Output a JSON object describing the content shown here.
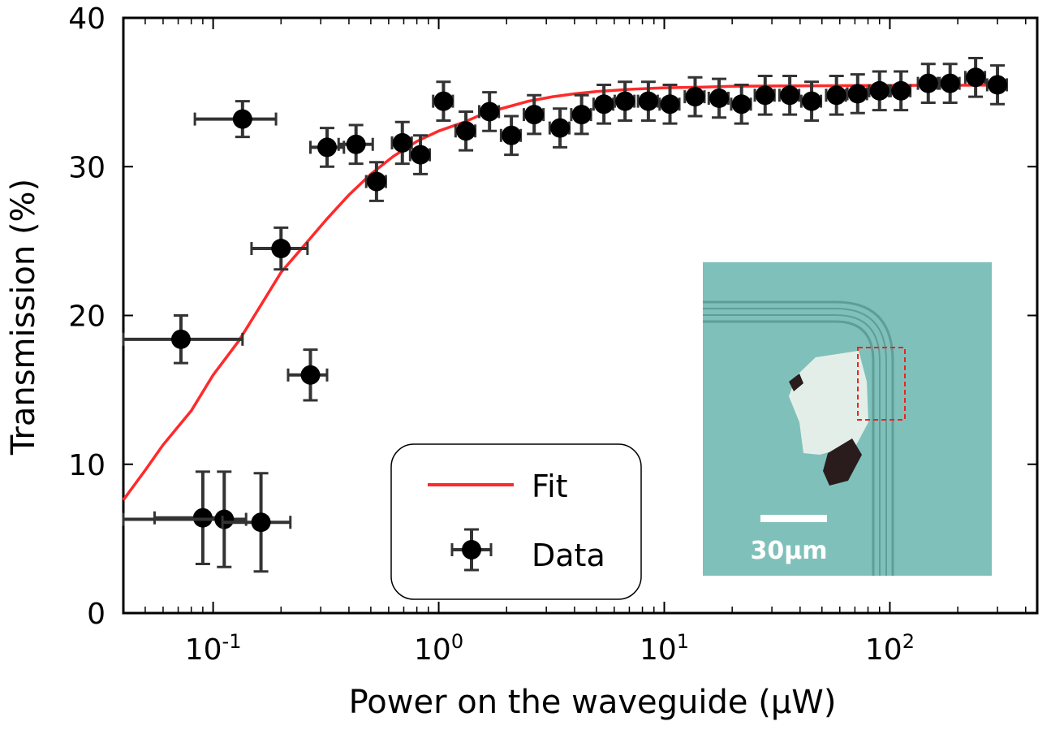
{
  "chart_data": {
    "type": "scatter",
    "title": "",
    "xlabel": "Power on the waveguide (μW)",
    "ylabel": "Transmission (%)",
    "xscale": "log",
    "xlim": [
      0.04,
      450
    ],
    "ylim": [
      0,
      40
    ],
    "yticks": [
      0,
      10,
      20,
      30,
      40
    ],
    "xticks": [
      {
        "value": 0.1,
        "base": "10",
        "exp": "-1"
      },
      {
        "value": 1,
        "base": "10",
        "exp": "0"
      },
      {
        "value": 10,
        "base": "10",
        "exp": "1"
      },
      {
        "value": 100,
        "base": "10",
        "exp": "2"
      }
    ],
    "legend": {
      "position": "bottom-center",
      "fit_label": "Fit",
      "data_label": "Data"
    },
    "colors": {
      "fit": "#ff2a2a",
      "data": "#000000",
      "errorbar": "#333333"
    },
    "fit": {
      "name": "Fit",
      "x": [
        0.04,
        0.05,
        0.06,
        0.08,
        0.1,
        0.13,
        0.16,
        0.2,
        0.25,
        0.32,
        0.4,
        0.5,
        0.63,
        0.8,
        1.0,
        1.3,
        1.6,
        2.0,
        2.5,
        3.2,
        4.0,
        5.0,
        7.0,
        10,
        15,
        20,
        30,
        50,
        70,
        100,
        150,
        200,
        300
      ],
      "y": [
        7.6,
        9.6,
        11.3,
        13.6,
        16.0,
        18.3,
        20.5,
        22.9,
        24.6,
        26.5,
        28.1,
        29.5,
        30.7,
        31.7,
        32.4,
        33.0,
        33.6,
        34.0,
        34.4,
        34.7,
        34.9,
        35.05,
        35.2,
        35.3,
        35.35,
        35.4,
        35.42,
        35.44,
        35.45,
        35.46,
        35.47,
        35.47,
        35.48
      ]
    },
    "series": [
      {
        "name": "Data",
        "points": [
          {
            "x": 0.072,
            "y": 18.4,
            "xlo": 0.03,
            "xhi": 0.135,
            "yerr": 1.6
          },
          {
            "x": 0.09,
            "y": 6.4,
            "xlo": 0.055,
            "xhi": 0.11,
            "yerr": 3.1
          },
          {
            "x": 0.112,
            "y": 6.3,
            "xlo": 0.04,
            "xhi": 0.14,
            "yerr": 3.2
          },
          {
            "x": 0.135,
            "y": 33.2,
            "xlo": 0.083,
            "xhi": 0.19,
            "yerr": 1.2
          },
          {
            "x": 0.163,
            "y": 6.1,
            "xlo": 0.11,
            "xhi": 0.22,
            "yerr": 3.3
          },
          {
            "x": 0.2,
            "y": 24.5,
            "xlo": 0.148,
            "xhi": 0.262,
            "yerr": 1.4
          },
          {
            "x": 0.27,
            "y": 16.0,
            "xlo": 0.215,
            "xhi": 0.32,
            "yerr": 1.7
          },
          {
            "x": 0.32,
            "y": 31.3,
            "xlo": 0.27,
            "xhi": 0.38,
            "yerr": 1.3
          },
          {
            "x": 0.43,
            "y": 31.5,
            "xlo": 0.36,
            "xhi": 0.51,
            "yerr": 1.3
          },
          {
            "x": 0.53,
            "y": 29.0,
            "xerr_frac": 0.1,
            "yerr": 1.3
          },
          {
            "x": 0.69,
            "y": 31.6,
            "xerr_frac": 0.1,
            "yerr": 1.4
          },
          {
            "x": 0.83,
            "y": 30.8,
            "xerr_frac": 0.1,
            "yerr": 1.3
          },
          {
            "x": 1.05,
            "y": 34.4,
            "xerr_frac": 0.1,
            "yerr": 1.3
          },
          {
            "x": 1.32,
            "y": 32.4,
            "xerr_frac": 0.1,
            "yerr": 1.3
          },
          {
            "x": 1.68,
            "y": 33.7,
            "xerr_frac": 0.1,
            "yerr": 1.3
          },
          {
            "x": 2.1,
            "y": 32.1,
            "xerr_frac": 0.1,
            "yerr": 1.3
          },
          {
            "x": 2.65,
            "y": 33.5,
            "xerr_frac": 0.1,
            "yerr": 1.3
          },
          {
            "x": 3.45,
            "y": 32.6,
            "xerr_frac": 0.1,
            "yerr": 1.3
          },
          {
            "x": 4.3,
            "y": 33.5,
            "xerr_frac": 0.1,
            "yerr": 1.3
          },
          {
            "x": 5.4,
            "y": 34.2,
            "xerr_frac": 0.1,
            "yerr": 1.3
          },
          {
            "x": 6.7,
            "y": 34.4,
            "xerr_frac": 0.1,
            "yerr": 1.3
          },
          {
            "x": 8.5,
            "y": 34.4,
            "xerr_frac": 0.1,
            "yerr": 1.3
          },
          {
            "x": 10.6,
            "y": 34.2,
            "xerr_frac": 0.1,
            "yerr": 1.3
          },
          {
            "x": 13.7,
            "y": 34.7,
            "xerr_frac": 0.1,
            "yerr": 1.3
          },
          {
            "x": 17.5,
            "y": 34.6,
            "xerr_frac": 0.1,
            "yerr": 1.3
          },
          {
            "x": 22,
            "y": 34.2,
            "xerr_frac": 0.1,
            "yerr": 1.3
          },
          {
            "x": 28,
            "y": 34.8,
            "xerr_frac": 0.1,
            "yerr": 1.3
          },
          {
            "x": 36,
            "y": 34.8,
            "xerr_frac": 0.1,
            "yerr": 1.3
          },
          {
            "x": 45,
            "y": 34.4,
            "xerr_frac": 0.1,
            "yerr": 1.3
          },
          {
            "x": 58,
            "y": 34.8,
            "xerr_frac": 0.1,
            "yerr": 1.3
          },
          {
            "x": 72,
            "y": 34.9,
            "xerr_frac": 0.1,
            "yerr": 1.3
          },
          {
            "x": 90,
            "y": 35.1,
            "xerr_frac": 0.1,
            "yerr": 1.3
          },
          {
            "x": 112,
            "y": 35.1,
            "xerr_frac": 0.1,
            "yerr": 1.3
          },
          {
            "x": 148,
            "y": 35.6,
            "xerr_frac": 0.1,
            "yerr": 1.3
          },
          {
            "x": 185,
            "y": 35.6,
            "xerr_frac": 0.1,
            "yerr": 1.3
          },
          {
            "x": 240,
            "y": 36.0,
            "xerr_frac": 0.1,
            "yerr": 1.3
          },
          {
            "x": 300,
            "y": 35.5,
            "xerr_frac": 0.1,
            "yerr": 1.3
          }
        ]
      }
    ],
    "inset": {
      "description": "microscope image",
      "scalebar_label": "30μm",
      "colors": {
        "background": "#7fc1ba",
        "waveguide": "#5f9e98",
        "flake": "#e4eee8",
        "flake_dark": "#2a1c1c",
        "roi": "#ee2222",
        "scalebar": "#ffffff"
      }
    }
  }
}
